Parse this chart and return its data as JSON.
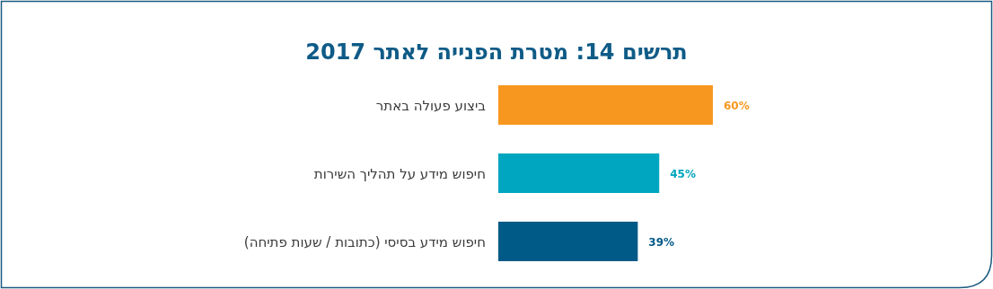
{
  "chart_data": {
    "type": "bar",
    "orientation": "horizontal",
    "title": "תרשים 14: מטרת הפנייה לאתר 2017",
    "categories": [
      "ביצוע פעולה באתר",
      "חיפוש מידע על תהליך השירות",
      "חיפוש מידע בסיסי (כתובות / שעות פתיחה)"
    ],
    "values": [
      60,
      45,
      39
    ],
    "colors": [
      "#f7971f",
      "#00a6bf",
      "#005a87"
    ],
    "value_labels": [
      "60%",
      "45%",
      "39%"
    ]
  }
}
